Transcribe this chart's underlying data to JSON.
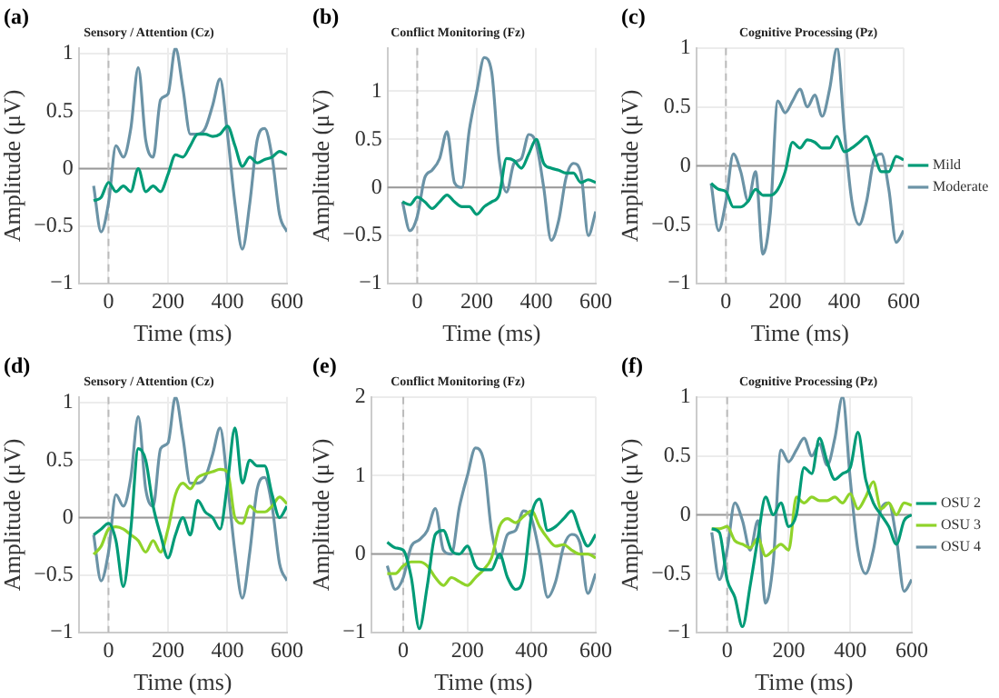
{
  "chart_data": [
    {
      "type": "line",
      "title": "Sensory / Attention (Cz)",
      "xlabel": "Time (ms)",
      "ylabel": "Amplitude (μV)",
      "annotations": [
        "(a)"
      ],
      "xlim": [
        -100,
        600
      ],
      "xticks": [
        0,
        200,
        400,
        600
      ],
      "ylim": [
        -1,
        1.05
      ],
      "yticks": [
        -1,
        -0.5,
        0,
        0.5,
        1
      ],
      "grid": true,
      "legend": false,
      "marker": "none",
      "line_style": "solid",
      "x": [
        -50,
        -25,
        0,
        25,
        50,
        75,
        100,
        125,
        150,
        175,
        200,
        225,
        250,
        275,
        300,
        325,
        350,
        375,
        400,
        425,
        450,
        475,
        500,
        525,
        550,
        575,
        600
      ],
      "ref_lines": [
        {
          "axis": "y",
          "value": 0,
          "color": "#999999",
          "line_style": "solid"
        },
        {
          "axis": "x",
          "value": 0,
          "color": "#bbbbbb",
          "line_style": "dashed"
        }
      ],
      "series": [
        {
          "color": "#009b77",
          "values": [
            -0.28,
            -0.25,
            -0.12,
            -0.2,
            -0.15,
            -0.2,
            0,
            -0.2,
            -0.15,
            -0.2,
            -0.05,
            0.12,
            0.1,
            0.2,
            0.3,
            0.3,
            0.28,
            0.3,
            0.37,
            0.2,
            0.02,
            0.1,
            0.05,
            0.08,
            0.1,
            0.15,
            0.12
          ]
        },
        {
          "color": "#6b93a6",
          "values": [
            -0.15,
            -0.55,
            -0.3,
            0.2,
            0.1,
            0.35,
            0.88,
            0.25,
            0.1,
            0.6,
            0.65,
            1.05,
            0.7,
            0.3,
            0.3,
            0.35,
            0.55,
            0.78,
            0.3,
            -0.3,
            -0.7,
            -0.3,
            0.25,
            0.35,
            0.1,
            -0.4,
            -0.55
          ]
        }
      ]
    },
    {
      "type": "line",
      "title": "Conflict Monitoring (Fz)",
      "xlabel": "Time (ms)",
      "ylabel": "Amplitude (μV)",
      "annotations": [
        "(b)"
      ],
      "xlim": [
        -100,
        600
      ],
      "xticks": [
        0,
        200,
        400,
        600
      ],
      "ylim": [
        -1,
        1.45
      ],
      "yticks": [
        -1,
        -0.5,
        0,
        0.5,
        1
      ],
      "grid": true,
      "legend": false,
      "marker": "none",
      "line_style": "solid",
      "x": [
        -50,
        -25,
        0,
        25,
        50,
        75,
        100,
        125,
        150,
        175,
        200,
        225,
        250,
        275,
        300,
        325,
        350,
        375,
        400,
        425,
        450,
        475,
        500,
        525,
        550,
        575,
        600
      ],
      "ref_lines": [
        {
          "axis": "y",
          "value": 0,
          "color": "#999999",
          "line_style": "solid"
        },
        {
          "axis": "x",
          "value": 0,
          "color": "#bbbbbb",
          "line_style": "dashed"
        }
      ],
      "series": [
        {
          "color": "#009b77",
          "values": [
            -0.15,
            -0.18,
            -0.1,
            -0.15,
            -0.22,
            -0.15,
            -0.08,
            -0.15,
            -0.2,
            -0.2,
            -0.28,
            -0.2,
            -0.15,
            -0.08,
            0.3,
            0.28,
            0.2,
            0.35,
            0.5,
            0.25,
            0.2,
            0.18,
            0.15,
            0.15,
            0.05,
            0.08,
            0.05
          ]
        },
        {
          "color": "#6b93a6",
          "values": [
            -0.15,
            -0.45,
            -0.3,
            0.1,
            0.18,
            0.3,
            0.58,
            0.05,
            0,
            0.6,
            1,
            1.35,
            1.2,
            0.3,
            -0.05,
            0.25,
            0.3,
            0.55,
            0.45,
            0,
            -0.55,
            -0.35,
            0.1,
            0.25,
            0.15,
            -0.5,
            -0.25
          ]
        }
      ]
    },
    {
      "type": "line",
      "title": "Cognitive Processing (Pz)",
      "xlabel": "Time (ms)",
      "ylabel": "Amplitude (μV)",
      "annotations": [
        "(c)"
      ],
      "xlim": [
        -100,
        600
      ],
      "xticks": [
        0,
        200,
        400,
        600
      ],
      "ylim": [
        -1,
        1
      ],
      "yticks": [
        -1,
        -0.5,
        0,
        0.5,
        1
      ],
      "grid": true,
      "legend": "right",
      "marker": "none",
      "line_style": "solid",
      "x": [
        -50,
        -25,
        0,
        25,
        50,
        75,
        100,
        125,
        150,
        175,
        200,
        225,
        250,
        275,
        300,
        325,
        350,
        375,
        400,
        425,
        450,
        475,
        500,
        525,
        550,
        575,
        600
      ],
      "ref_lines": [
        {
          "axis": "y",
          "value": 0,
          "color": "#999999",
          "line_style": "solid"
        },
        {
          "axis": "x",
          "value": 0,
          "color": "#bbbbbb",
          "line_style": "dashed"
        }
      ],
      "series": [
        {
          "name": "Mild",
          "color": "#009b77",
          "values": [
            -0.15,
            -0.2,
            -0.22,
            -0.35,
            -0.35,
            -0.3,
            -0.2,
            -0.25,
            -0.25,
            -0.2,
            -0.05,
            0.2,
            0.15,
            0.22,
            0.2,
            0.15,
            0.15,
            0.25,
            0.12,
            0.15,
            0.2,
            0.25,
            0.1,
            -0.05,
            -0.05,
            0.08,
            0.05
          ]
        },
        {
          "name": "Moderate",
          "color": "#6b93a6",
          "values": [
            -0.15,
            -0.55,
            -0.3,
            0.1,
            -0.05,
            -0.3,
            -0.05,
            -0.75,
            -0.4,
            0.55,
            0.45,
            0.55,
            0.65,
            0.5,
            0.6,
            0.42,
            0.65,
            1,
            0.3,
            -0.3,
            -0.5,
            -0.3,
            0.05,
            0.1,
            -0.2,
            -0.65,
            -0.55
          ]
        }
      ]
    },
    {
      "type": "line",
      "title": "Sensory / Attention (Cz)",
      "xlabel": "Time (ms)",
      "ylabel": "Amplitude (μV)",
      "annotations": [
        "(d)"
      ],
      "xlim": [
        -100,
        600
      ],
      "xticks": [
        0,
        200,
        400,
        600
      ],
      "ylim": [
        -1,
        1.05
      ],
      "yticks": [
        -1,
        -0.5,
        0,
        0.5,
        1
      ],
      "grid": true,
      "legend": false,
      "marker": "none",
      "line_style": "solid",
      "x": [
        -50,
        -25,
        0,
        25,
        50,
        75,
        100,
        125,
        150,
        175,
        200,
        225,
        250,
        275,
        300,
        325,
        350,
        375,
        400,
        425,
        450,
        475,
        500,
        525,
        550,
        575,
        600
      ],
      "ref_lines": [
        {
          "axis": "y",
          "value": 0,
          "color": "#999999",
          "line_style": "solid"
        },
        {
          "axis": "x",
          "value": 0,
          "color": "#bbbbbb",
          "line_style": "dashed"
        }
      ],
      "series": [
        {
          "color": "#009b77",
          "values": [
            -0.15,
            -0.1,
            -0.05,
            -0.2,
            -0.6,
            -0.1,
            0.6,
            0.5,
            0.1,
            -0.15,
            -0.35,
            -0.15,
            0,
            -0.15,
            0.15,
            0.05,
            0,
            -0.1,
            0.3,
            0.78,
            0.3,
            0.5,
            0.45,
            0.45,
            0.2,
            0,
            0.1
          ]
        },
        {
          "color": "#8fd32a",
          "values": [
            -0.32,
            -0.25,
            -0.1,
            -0.08,
            -0.1,
            -0.15,
            -0.2,
            -0.3,
            -0.2,
            -0.3,
            -0.1,
            0.2,
            0.3,
            0.25,
            0.35,
            0.38,
            0.4,
            0.42,
            0.4,
            0,
            -0.05,
            0.1,
            0.05,
            0.05,
            0.1,
            0.18,
            0.12
          ]
        },
        {
          "color": "#6b93a6",
          "values": [
            -0.15,
            -0.55,
            -0.3,
            0.2,
            0.1,
            0.35,
            0.88,
            0.25,
            0.1,
            0.6,
            0.65,
            1.05,
            0.7,
            0.3,
            0.3,
            0.35,
            0.55,
            0.78,
            0.3,
            -0.3,
            -0.7,
            -0.3,
            0.25,
            0.35,
            0.1,
            -0.4,
            -0.55
          ]
        }
      ]
    },
    {
      "type": "line",
      "title": "Conflict Monitoring (Fz)",
      "xlabel": "Time (ms)",
      "ylabel": "Amplitude (μV)",
      "annotations": [
        "(e)"
      ],
      "xlim": [
        -100,
        600
      ],
      "xticks": [
        0,
        200,
        400,
        600
      ],
      "ylim": [
        -1,
        2
      ],
      "yticks": [
        -1,
        0,
        1,
        2
      ],
      "grid": true,
      "legend": false,
      "marker": "none",
      "line_style": "solid",
      "x": [
        -50,
        -25,
        0,
        25,
        50,
        75,
        100,
        125,
        150,
        175,
        200,
        225,
        250,
        275,
        300,
        325,
        350,
        375,
        400,
        425,
        450,
        475,
        500,
        525,
        550,
        575,
        600
      ],
      "ref_lines": [
        {
          "axis": "y",
          "value": 0,
          "color": "#999999",
          "line_style": "solid"
        },
        {
          "axis": "x",
          "value": 0,
          "color": "#bbbbbb",
          "line_style": "dashed"
        }
      ],
      "series": [
        {
          "color": "#009b77",
          "values": [
            0.15,
            0.08,
            0.05,
            -0.3,
            -0.95,
            -0.4,
            0.25,
            0.3,
            0.05,
            0,
            0.1,
            -0.15,
            -0.2,
            -0.2,
            0,
            -0.3,
            -0.45,
            -0.3,
            0.5,
            0.7,
            0.3,
            0.35,
            0.45,
            0.55,
            0.3,
            0.1,
            0.25
          ]
        },
        {
          "color": "#8fd32a",
          "values": [
            -0.25,
            -0.25,
            -0.15,
            -0.1,
            -0.1,
            -0.15,
            -0.3,
            -0.4,
            -0.3,
            -0.35,
            -0.4,
            -0.3,
            -0.2,
            -0.05,
            0.35,
            0.45,
            0.4,
            0.48,
            0.55,
            0.35,
            0.2,
            0.1,
            0.12,
            0.05,
            0,
            0,
            -0.05
          ]
        },
        {
          "color": "#6b93a6",
          "values": [
            -0.15,
            -0.45,
            -0.3,
            0.1,
            0.18,
            0.3,
            0.58,
            0.05,
            0,
            0.6,
            1,
            1.35,
            1.2,
            0.3,
            -0.05,
            0.25,
            0.3,
            0.55,
            0.45,
            0,
            -0.55,
            -0.35,
            0.1,
            0.25,
            0.15,
            -0.5,
            -0.25
          ]
        }
      ]
    },
    {
      "type": "line",
      "title": "Cognitive Processing (Pz)",
      "xlabel": "Time (ms)",
      "ylabel": "Amplitude (μV)",
      "annotations": [
        "(f)"
      ],
      "xlim": [
        -100,
        600
      ],
      "xticks": [
        0,
        200,
        400,
        600
      ],
      "ylim": [
        -1,
        1
      ],
      "yticks": [
        -1,
        -0.5,
        0,
        0.5,
        1
      ],
      "grid": true,
      "legend": "right",
      "marker": "none",
      "line_style": "solid",
      "x": [
        -50,
        -25,
        0,
        25,
        50,
        75,
        100,
        125,
        150,
        175,
        200,
        225,
        250,
        275,
        300,
        325,
        350,
        375,
        400,
        425,
        450,
        475,
        500,
        525,
        550,
        575,
        600
      ],
      "ref_lines": [
        {
          "axis": "y",
          "value": 0,
          "color": "#999999",
          "line_style": "solid"
        },
        {
          "axis": "x",
          "value": 0,
          "color": "#bbbbbb",
          "line_style": "dashed"
        }
      ],
      "series": [
        {
          "name": "OSU 2",
          "color": "#009b77",
          "values": [
            -0.12,
            -0.15,
            -0.55,
            -0.7,
            -0.95,
            -0.6,
            -0.2,
            0.15,
            0,
            0.1,
            -0.1,
            0,
            0.4,
            0.35,
            0.65,
            0.45,
            0.3,
            0.35,
            0.4,
            0.7,
            0.3,
            0.1,
            0,
            -0.1,
            -0.25,
            -0.05,
            0
          ]
        },
        {
          "name": "OSU 3",
          "color": "#8fd32a",
          "values": [
            -0.12,
            -0.12,
            -0.1,
            -0.22,
            -0.25,
            -0.28,
            -0.2,
            -0.35,
            -0.3,
            -0.25,
            -0.3,
            0.15,
            0.1,
            0.15,
            0.12,
            0.12,
            0.15,
            0.1,
            0.18,
            0.05,
            0.15,
            0.28,
            0.05,
            0.1,
            0,
            0.1,
            0.08
          ]
        },
        {
          "name": "OSU 4",
          "color": "#6b93a6",
          "values": [
            -0.15,
            -0.55,
            -0.3,
            0.1,
            -0.05,
            -0.3,
            -0.05,
            -0.75,
            -0.4,
            0.55,
            0.45,
            0.55,
            0.65,
            0.5,
            0.6,
            0.42,
            0.65,
            1,
            0.3,
            -0.3,
            -0.5,
            -0.3,
            0.05,
            0.1,
            -0.2,
            -0.65,
            -0.55
          ]
        }
      ]
    }
  ]
}
